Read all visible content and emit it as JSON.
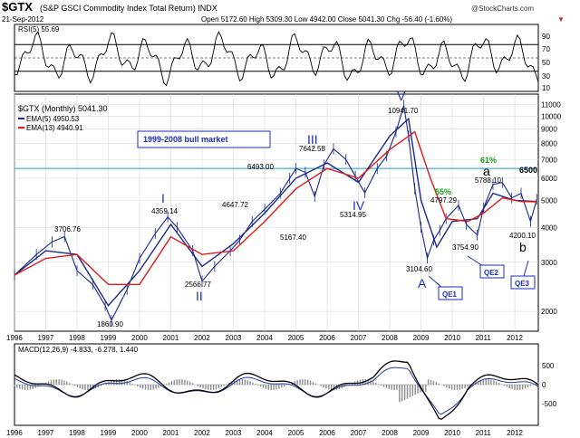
{
  "header": {
    "symbol": "$GTX",
    "name": "(S&P GSCI Commodity Index  Total Return)  INDX",
    "date": "21-Sep-2012",
    "ohlc": "Open 5172.60   High 5309.30   Low 4942.00   Close 5041.30   Chg -56.40 (-1.60%)",
    "watermark": "@StockCharts.com",
    "chg_marker": "▼"
  },
  "rsi": {
    "label": "RSI(5) 55.69",
    "ticks": [
      "90",
      "70",
      "50",
      "30",
      "10"
    ]
  },
  "main": {
    "legend": {
      "price": "$GTX (Monthly) 5041.30",
      "ema1": "EMA(5) 4950.53",
      "ema2": "EMA(13) 4940.91"
    },
    "boxed_label": "1999-2008 bull market",
    "threshold": "6500",
    "price_ticks": [
      "11000",
      "10000",
      "9000",
      "8000",
      "7000",
      "6000",
      "5000",
      "4000",
      "3000",
      "2000"
    ],
    "wave_labels": {
      "I": "I",
      "II": "II",
      "III": "III",
      "IV": "IV",
      "V": "V",
      "A": "A",
      "a": "a",
      "b": "b"
    },
    "pct_labels": {
      "p61": "61%",
      "p55": "55%"
    },
    "qe_labels": [
      "QE1",
      "QE2",
      "QE3"
    ],
    "price_labels": [
      "3706.76",
      "1860.90",
      "4359.14",
      "2566.77",
      "4647.72",
      "6493.00",
      "5167.40",
      "7642.58",
      "5314.95",
      "10941.70",
      "3104.60",
      "4797.29",
      "3754.90",
      "5788.10",
      "4200.10"
    ]
  },
  "macd": {
    "label": "MACD(12,26,9)  -4.833, -6.278, 1.440",
    "ticks": [
      "500",
      "0",
      "-500"
    ]
  },
  "x_axis_years": [
    "1996",
    "1997",
    "1998",
    "1999",
    "2000",
    "2001",
    "2002",
    "2003",
    "2004",
    "2005",
    "2006",
    "2007",
    "2008",
    "2009",
    "2010",
    "2011",
    "2012"
  ],
  "colors": {
    "price": "#1b2a8a",
    "ema_fast": "#1b2a8a",
    "ema_slow": "#e21b1b",
    "rsi_fill": "#000000",
    "hline": "#55b8e6",
    "wave_label": "#1a2fc0",
    "pct_label": "#1aa01a",
    "macd_hist": "#8e8e8e",
    "grid": "#d9d9d9"
  },
  "chart_data": {
    "type": "line",
    "title": "$GTX (S&P GSCI Commodity Index  Total Return)  INDX",
    "price_scale": "log",
    "ylim": [
      1700,
      12000
    ],
    "series": [
      {
        "name": "$GTX (Monthly)",
        "x": [
          1996.0,
          1996.7,
          1997.2,
          1997.6,
          1998.0,
          1998.5,
          1998.9,
          1999.1,
          1999.6,
          2000.0,
          2000.5,
          2000.9,
          2001.2,
          2001.7,
          2002.0,
          2002.4,
          2002.9,
          2003.2,
          2003.6,
          2004.0,
          2004.5,
          2004.8,
          2005.0,
          2005.3,
          2005.6,
          2005.9,
          2006.2,
          2006.6,
          2006.9,
          2007.2,
          2007.6,
          2007.9,
          2008.2,
          2008.45,
          2008.6,
          2008.8,
          2009.0,
          2009.2,
          2009.4,
          2009.6,
          2009.8,
          2010.2,
          2010.45,
          2010.8,
          2011.0,
          2011.3,
          2011.6,
          2011.9,
          2012.2,
          2012.5,
          2012.7
        ],
        "values": [
          2700,
          3200,
          3550,
          3706.76,
          2800,
          2500,
          2100,
          1860.9,
          2400,
          3100,
          3800,
          4359.14,
          4000,
          3300,
          2566.77,
          2900,
          3300,
          3600,
          4200,
          4647.72,
          5300,
          6000,
          6493,
          6300,
          5167.4,
          6700,
          7642.58,
          7000,
          6100,
          5314.95,
          6500,
          7200,
          8800,
          10941.7,
          8500,
          5500,
          4000,
          3104.6,
          3600,
          3900,
          4300,
          4797.29,
          4100,
          3754.9,
          4700,
          5700,
          5788.1,
          5100,
          5300,
          4200.1,
          5041.3
        ]
      },
      {
        "name": "EMA(5)",
        "x": [
          1996.0,
          1997.0,
          1998.0,
          1999.0,
          2000.0,
          2001.0,
          2002.0,
          2003.0,
          2004.0,
          2005.0,
          2006.0,
          2007.0,
          2008.0,
          2008.6,
          2009.0,
          2009.5,
          2010.0,
          2010.8,
          2011.3,
          2012.0,
          2012.7
        ],
        "values": [
          2700,
          3300,
          3200,
          2100,
          2800,
          4100,
          2900,
          3500,
          4500,
          6000,
          6800,
          5800,
          8500,
          9800,
          5000,
          3400,
          4200,
          4300,
          5300,
          5000,
          4950.53
        ]
      },
      {
        "name": "EMA(13)",
        "x": [
          1996.0,
          1997.0,
          1998.0,
          1999.0,
          2000.0,
          2001.0,
          2002.0,
          2003.0,
          2004.0,
          2005.0,
          2006.0,
          2007.0,
          2008.0,
          2008.8,
          2009.3,
          2009.8,
          2010.5,
          2011.0,
          2011.6,
          2012.2,
          2012.7
        ],
        "values": [
          2700,
          3100,
          3200,
          2500,
          2500,
          3700,
          3200,
          3300,
          4200,
          5500,
          6500,
          6000,
          7600,
          8800,
          6000,
          4300,
          4200,
          4500,
          5100,
          4950,
          4940.91
        ]
      }
    ],
    "hline": 6500,
    "x_ticks": [
      "1996",
      "1997",
      "1998",
      "1999",
      "2000",
      "2001",
      "2002",
      "2003",
      "2004",
      "2005",
      "2006",
      "2007",
      "2008",
      "2009",
      "2010",
      "2011",
      "2012"
    ],
    "y_ticks": [
      2000,
      3000,
      4000,
      5000,
      6000,
      7000,
      8000,
      9000,
      10000,
      11000
    ],
    "grid": true
  }
}
